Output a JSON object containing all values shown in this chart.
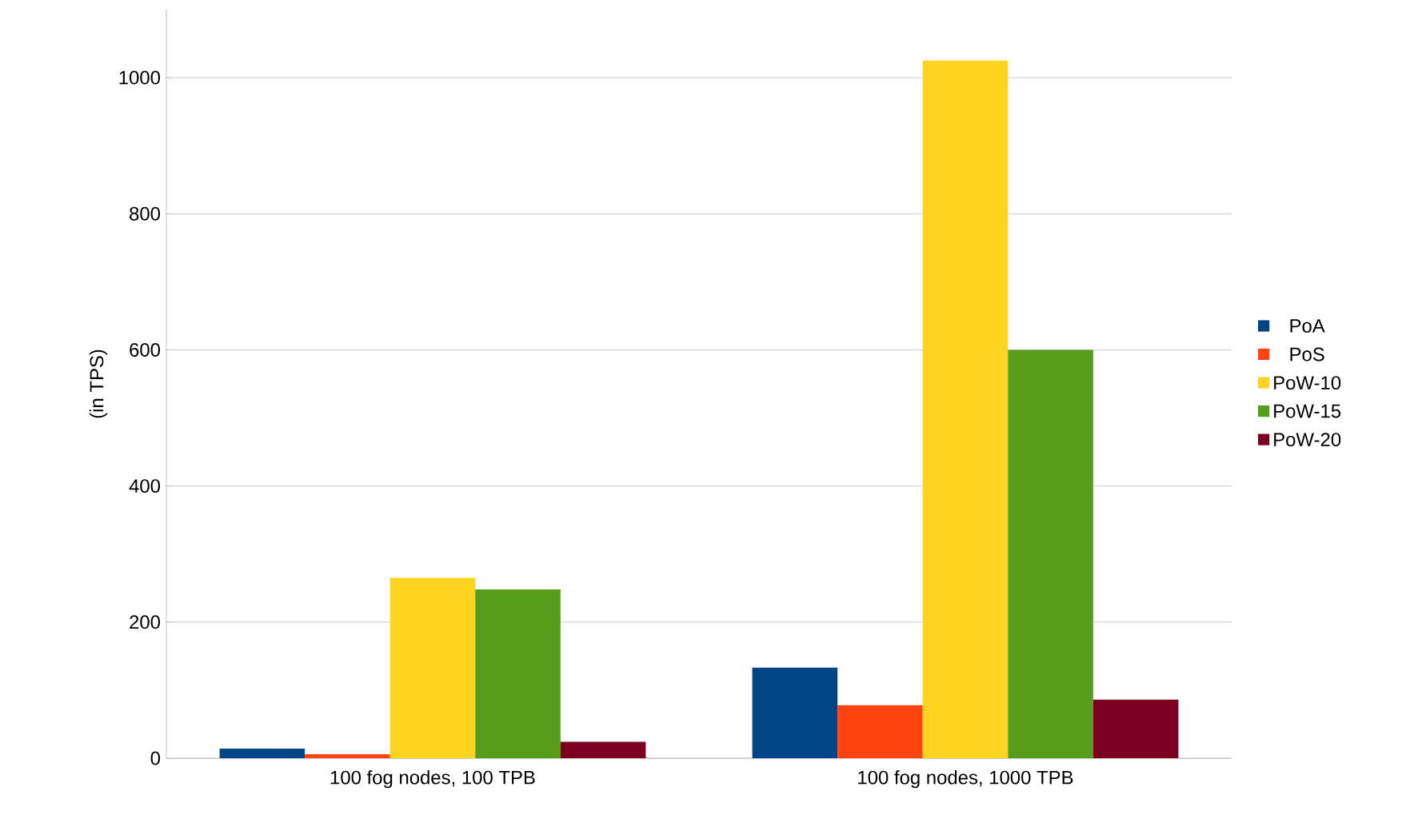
{
  "chart_data": {
    "type": "bar",
    "ylabel": "(in TPS)",
    "categories": [
      "100 fog nodes, 100 TPB",
      "100 fog nodes, 1000 TPB"
    ],
    "series": [
      {
        "name": "PoA",
        "color": "#004586",
        "values": [
          14,
          133
        ]
      },
      {
        "name": "PoS",
        "color": "#ff420e",
        "values": [
          6,
          78
        ]
      },
      {
        "name": "PoW-10",
        "color": "#ffd320",
        "values": [
          265,
          1025
        ]
      },
      {
        "name": "PoW-15",
        "color": "#579d1c",
        "values": [
          248,
          600
        ]
      },
      {
        "name": "PoW-20",
        "color": "#7e0021",
        "values": [
          24,
          86
        ]
      }
    ],
    "ylim": [
      0,
      1100
    ],
    "yticks": [
      0,
      200,
      400,
      600,
      800,
      1000
    ],
    "grid": "y",
    "legend": "right"
  }
}
